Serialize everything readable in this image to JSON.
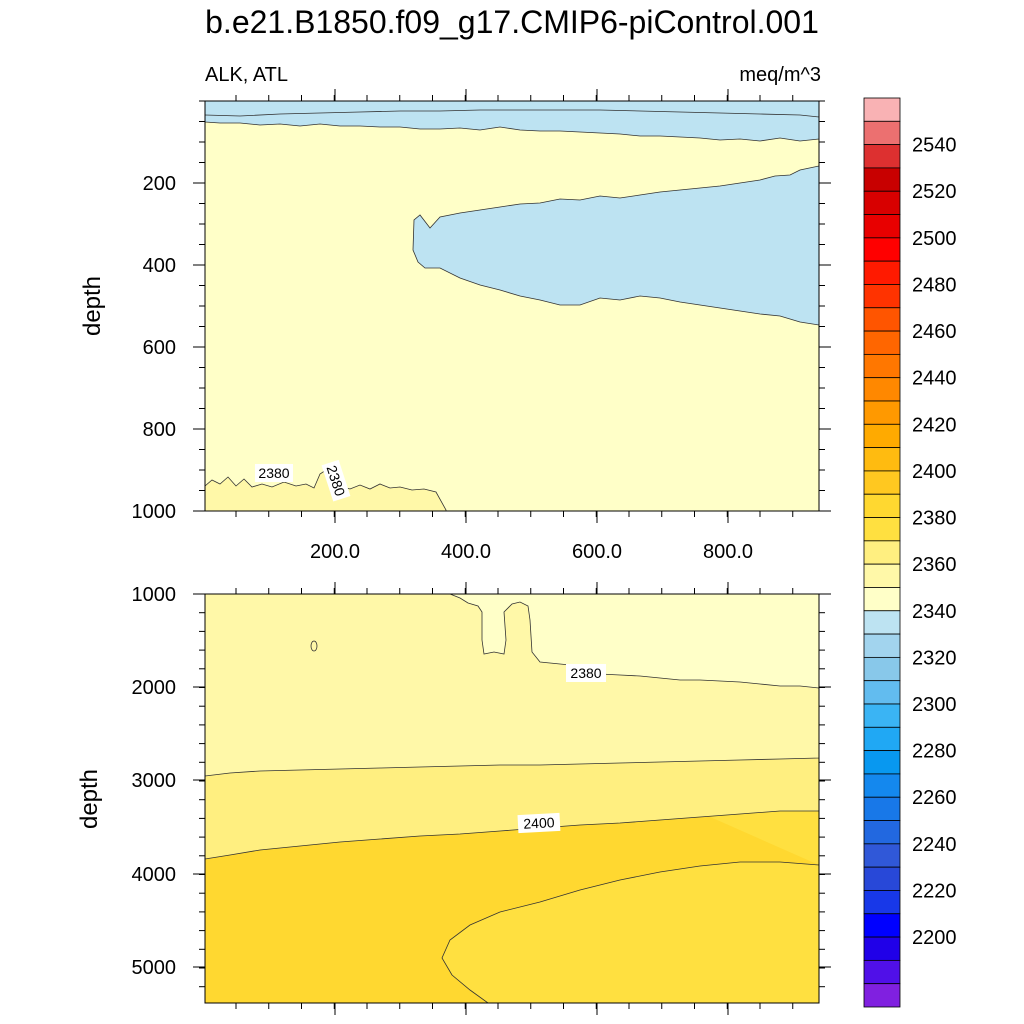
{
  "title": "b.e21.B1850.f09_g17.CMIP6-piControl.001",
  "left_label": "ALK, ATL",
  "right_label": "meq/m^3",
  "chart_data": [
    {
      "type": "contour",
      "panel": "upper",
      "ylabel": "depth",
      "xticks": [
        "200.0",
        "400.0",
        "600.0",
        "800.0"
      ],
      "yticks": [
        "200",
        "400",
        "600",
        "800",
        "1000"
      ],
      "ylim": [
        1000,
        0
      ],
      "contour_labels": [
        "2380",
        "2380"
      ]
    },
    {
      "type": "contour",
      "panel": "lower",
      "ylabel": "depth",
      "yticks": [
        "1000",
        "2000",
        "3000",
        "4000",
        "5000"
      ],
      "ylim": [
        5400,
        1000
      ],
      "contour_labels": [
        "2380",
        "2400"
      ]
    }
  ],
  "colorbar": {
    "labels": [
      "2540",
      "2520",
      "2500",
      "2480",
      "2460",
      "2440",
      "2420",
      "2400",
      "2380",
      "2360",
      "2340",
      "2320",
      "2300",
      "2280",
      "2260",
      "2240",
      "2220",
      "2200"
    ],
    "colors": [
      "#f9b2b4",
      "#ec7070",
      "#dd3030",
      "#c80000",
      "#d80000",
      "#e80000",
      "#ff0000",
      "#ff1a00",
      "#ff3300",
      "#ff5500",
      "#ff6600",
      "#ff7700",
      "#ff8800",
      "#ff9900",
      "#ffaa00",
      "#ffbb10",
      "#ffc820",
      "#ffd830",
      "#ffe040",
      "#ffef80",
      "#fff8a8",
      "#ffffc8",
      "#bde3f2",
      "#a2d4ee",
      "#88c8ea",
      "#62bcef",
      "#3ab4f4",
      "#20a8f4",
      "#0898f0",
      "#1488ee",
      "#1878e8",
      "#2268e0",
      "#3058d8",
      "#2848d8",
      "#1838e8",
      "#0000ff",
      "#2000e8",
      "#5010e8",
      "#8020e0"
    ]
  }
}
